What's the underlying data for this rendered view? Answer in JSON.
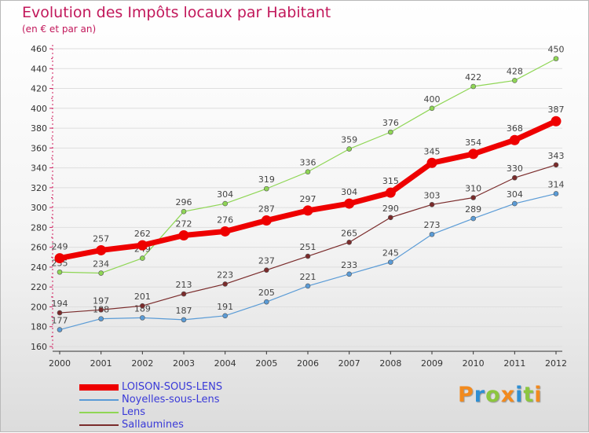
{
  "chart_data": {
    "type": "line",
    "title": "Evolution des Impôts locaux par Habitant",
    "subtitle": "(en € et par an)",
    "xlabel": "",
    "ylabel": "",
    "ylim": [
      160,
      460
    ],
    "y_ticks": [
      160,
      180,
      200,
      220,
      240,
      260,
      280,
      300,
      320,
      340,
      360,
      380,
      400,
      420,
      440,
      460
    ],
    "x": [
      "2000",
      "2001",
      "2002",
      "2003",
      "2004",
      "2005",
      "2006",
      "2007",
      "2008",
      "2009",
      "2010",
      "2011",
      "2012"
    ],
    "grid": "horizontal",
    "legend_position": "bottom-left",
    "series": [
      {
        "name": "Lens",
        "color": "#8fd655",
        "values": [
          235,
          234,
          249,
          296,
          304,
          319,
          336,
          359,
          376,
          400,
          422,
          428,
          450
        ]
      },
      {
        "name": "Noyelles-sous-Lens",
        "color": "#5a9bd6",
        "values": [
          177,
          188,
          189,
          187,
          191,
          205,
          221,
          233,
          245,
          273,
          289,
          304,
          314
        ]
      },
      {
        "name": "Sallaumines",
        "color": "#7a2b2b",
        "values": [
          194,
          197,
          201,
          213,
          223,
          237,
          251,
          265,
          290,
          303,
          310,
          330,
          343
        ]
      },
      {
        "name": "LOISON-SOUS-LENS",
        "color": "#ee0000",
        "values": [
          249,
          257,
          262,
          272,
          276,
          287,
          297,
          304,
          315,
          345,
          354,
          368,
          387
        ]
      }
    ]
  },
  "legend": {
    "items": [
      {
        "label": "LOISON-SOUS-LENS",
        "color": "#ee0000"
      },
      {
        "label": "Noyelles-sous-Lens",
        "color": "#5a9bd6"
      },
      {
        "label": "Lens",
        "color": "#8fd655"
      },
      {
        "label": "Sallaumines",
        "color": "#7a2b2b"
      }
    ]
  },
  "logo": {
    "letters": [
      "P",
      "r",
      "o",
      "x",
      "i",
      "t",
      "i"
    ],
    "colors": [
      "#f28a1e",
      "#2f8fd3",
      "#8cc63f",
      "#f28a1e",
      "#2f8fd3",
      "#8cc63f",
      "#f28a1e"
    ]
  }
}
